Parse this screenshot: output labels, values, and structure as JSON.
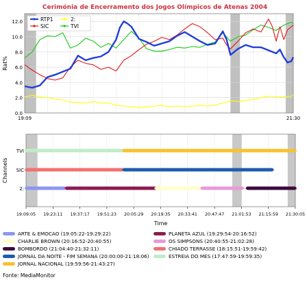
{
  "chart_data": [
    {
      "type": "line",
      "title": "Cerimónia de Encerramento dos Jogos Olímpicos de Atenas 2004",
      "ylabel": "Rat%",
      "xlabel": "",
      "ylim": [
        0,
        13
      ],
      "yticks": [
        0.0,
        2.0,
        4.0,
        6.0,
        8.0,
        10.0,
        12.0
      ],
      "x_range": [
        "19:09",
        "21:30"
      ],
      "xticks": [
        "19:09",
        "21:30"
      ],
      "grid": true,
      "legend_position": "top-left",
      "shaded_intervals": [
        [
          "19:09",
          "19:15"
        ],
        [
          "20:57",
          "21:02"
        ],
        [
          "21:26",
          "21:30"
        ]
      ],
      "series": [
        {
          "name": "RTP1",
          "color": "#1f3fd8",
          "x": [
            0,
            4,
            8,
            12,
            16,
            20,
            24,
            28,
            32,
            36,
            40,
            44,
            48,
            50,
            52,
            54,
            56,
            60,
            64,
            68,
            72,
            76,
            80,
            84,
            88,
            92,
            96,
            100,
            104,
            106,
            108,
            112,
            116,
            120,
            124,
            128,
            132,
            134,
            136,
            138,
            140,
            141
          ],
          "values": [
            3.5,
            3.3,
            3.6,
            4.7,
            5.0,
            5.4,
            5.8,
            7.5,
            6.9,
            7.2,
            7.4,
            8.0,
            9.6,
            11.2,
            12.0,
            11.7,
            11.3,
            9.7,
            9.3,
            8.8,
            9.1,
            9.4,
            10.1,
            10.6,
            10.0,
            9.4,
            8.9,
            9.1,
            10.7,
            9.6,
            7.6,
            8.4,
            8.9,
            8.6,
            8.6,
            8.2,
            7.8,
            8.3,
            7.3,
            6.6,
            6.8,
            7.3
          ]
        },
        {
          "name": "SIC",
          "color": "#e01818",
          "x": [
            0,
            4,
            8,
            12,
            16,
            20,
            24,
            28,
            32,
            36,
            40,
            44,
            48,
            52,
            56,
            60,
            64,
            68,
            72,
            76,
            80,
            84,
            88,
            92,
            96,
            100,
            104,
            106,
            108,
            112,
            116,
            120,
            124,
            128,
            130,
            132,
            134,
            136,
            138,
            140,
            141
          ],
          "values": [
            6.3,
            5.6,
            5.0,
            4.5,
            4.3,
            4.6,
            6.0,
            6.9,
            6.5,
            6.3,
            5.7,
            6.0,
            5.5,
            6.9,
            7.5,
            8.3,
            9.0,
            9.4,
            9.9,
            9.6,
            10.2,
            11.0,
            11.7,
            11.3,
            10.5,
            9.6,
            9.8,
            8.9,
            8.4,
            9.4,
            10.5,
            11.0,
            10.6,
            12.3,
            11.3,
            9.4,
            11.3,
            9.6,
            10.9,
            11.3,
            11.5
          ]
        },
        {
          "name": "TVI",
          "color": "#18c818",
          "x": [
            0,
            4,
            8,
            12,
            16,
            20,
            24,
            28,
            32,
            36,
            40,
            44,
            48,
            52,
            56,
            60,
            64,
            68,
            72,
            76,
            80,
            84,
            88,
            92,
            96,
            100,
            104,
            108,
            112,
            116,
            120,
            124,
            128,
            132,
            136,
            140,
            141
          ],
          "values": [
            7.2,
            8.0,
            9.6,
            10.1,
            10.0,
            10.5,
            8.5,
            8.9,
            9.8,
            9.4,
            8.6,
            9.1,
            8.5,
            9.6,
            10.7,
            9.8,
            8.4,
            8.1,
            8.1,
            8.3,
            8.6,
            8.5,
            8.7,
            8.6,
            9.0,
            9.3,
            10.5,
            9.4,
            10.0,
            10.2,
            10.9,
            11.5,
            11.2,
            10.8,
            11.5,
            11.9,
            11.7
          ]
        },
        {
          "name": "2:",
          "color": "#ffff00",
          "x": [
            0,
            4,
            8,
            12,
            16,
            20,
            24,
            28,
            32,
            36,
            40,
            44,
            48,
            52,
            56,
            60,
            64,
            68,
            72,
            76,
            80,
            84,
            88,
            92,
            96,
            100,
            104,
            108,
            112,
            116,
            120,
            124,
            128,
            132,
            136,
            140,
            141
          ],
          "values": [
            2.1,
            2.3,
            2.1,
            2.0,
            1.8,
            1.7,
            1.4,
            1.4,
            1.3,
            1.5,
            1.3,
            1.3,
            1.0,
            0.9,
            0.8,
            0.7,
            0.8,
            0.9,
            1.0,
            0.8,
            0.9,
            0.8,
            0.9,
            1.0,
            0.9,
            1.0,
            1.3,
            1.6,
            1.5,
            1.6,
            1.8,
            2.0,
            2.2,
            2.1,
            2.1,
            2.2,
            2.4
          ]
        }
      ]
    },
    {
      "type": "timeline",
      "ylabel": "Channels",
      "xlabel": "Time",
      "categories": [
        "TVI",
        "SIC",
        "2:"
      ],
      "xticks": [
        "19:09:05",
        "19:23:11",
        "19:37:17",
        "19:51:23",
        "20:05:29",
        "20:19:35",
        "20:33:41",
        "20:47:47",
        "21:01:53",
        "21:15:59",
        "21:30:05"
      ],
      "shaded_intervals": [
        [
          "19:09",
          "19:15"
        ],
        [
          "20:57",
          "21:02"
        ],
        [
          "21:26",
          "21:30"
        ]
      ],
      "rows": [
        {
          "channel": "TVI",
          "segments": [
            {
              "program": "ESTREIA DO MES",
              "start": "19:09",
              "end": "19:59:35",
              "color": "#bfecc4"
            },
            {
              "program": "JORNAL NACIONAL",
              "start": "19:59:56",
              "end": "21:30",
              "color": "#f6c22e"
            }
          ]
        },
        {
          "channel": "SIC",
          "segments": [
            {
              "program": "CHIADO TERRASSE",
              "start": "19:09",
              "end": "19:59:42",
              "color": "#f47070"
            },
            {
              "program": "JORNAL DA NOITE - FIM SEMANA",
              "start": "20:00:00",
              "end": "21:18:06",
              "color": "#1c5cb0"
            }
          ]
        },
        {
          "channel": "2:",
          "segments": [
            {
              "program": "ARTE & EMOCAO",
              "start": "19:09",
              "end": "19:29:22",
              "color": "#8b96f0"
            },
            {
              "program": "PLANETA AZUL",
              "start": "19:29:54",
              "end": "20:16:52",
              "color": "#8c1b52"
            },
            {
              "program": "CHARLIE BROWN",
              "start": "20:16:52",
              "end": "20:40:55",
              "color": "#ffffc8"
            },
            {
              "program": "OS SIMPSONS",
              "start": "20:40:55",
              "end": "21:02:28",
              "color": "#e89ad8"
            },
            {
              "program": "BOMBORDO",
              "start": "21:04:40",
              "end": "21:30",
              "color": "#3c0a3c"
            }
          ]
        }
      ]
    }
  ],
  "legend": [
    {
      "label": "ARTE & EMOCAO (19:05:22-19:29:22)",
      "color": "#8b96f0"
    },
    {
      "label": "PLANETA AZUL (19:29:54-20:16:52)",
      "color": "#8c1b52"
    },
    {
      "label": "CHARLIE BROWN (20:16:52-20:40:55)",
      "color": "#ffffc8"
    },
    {
      "label": "OS SIMPSONS (20:40:55-21:02:28)",
      "color": "#e89ad8"
    },
    {
      "label": "BOMBORDO (21:04:40-21:32:11)",
      "color": "#3c0a3c"
    },
    {
      "label": "CHIADO TERRASSE (18:15:51-19:59:42)",
      "color": "#f47070"
    },
    {
      "label": "JORNAL DA NOITE - FIM SEMANA (20:00:00-21:18:06)",
      "color": "#1c5cb0"
    },
    {
      "label": "ESTREIA DO MES (17:47:59-19:59:35)",
      "color": "#bfecc4"
    },
    {
      "label": "JORNAL NACIONAL (19:59:56-21:43:27)",
      "color": "#f6c22e"
    }
  ],
  "source": "Fonte: MediaMonitor"
}
